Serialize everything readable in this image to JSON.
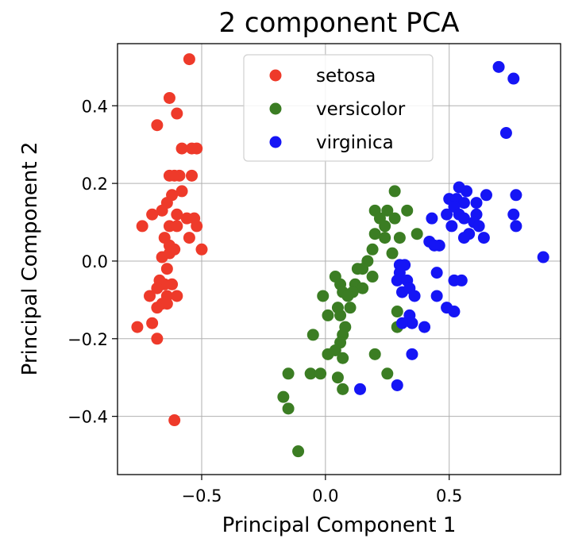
{
  "chart_data": {
    "type": "scatter",
    "title": "2 component PCA",
    "xlabel": "Principal Component 1",
    "ylabel": "Principal Component 2",
    "xlim": [
      -0.84,
      0.95
    ],
    "ylim": [
      -0.55,
      0.56
    ],
    "xticks": [
      -0.5,
      0.0,
      0.5
    ],
    "xtick_labels": [
      "−0.5",
      "0.0",
      "0.5"
    ],
    "yticks": [
      -0.4,
      -0.2,
      0.0,
      0.2,
      0.4
    ],
    "ytick_labels": [
      "−0.4",
      "−0.2",
      "0.0",
      "0.2",
      "0.4"
    ],
    "grid": true,
    "legend_position": "top-center",
    "series": [
      {
        "name": "setosa",
        "color": "#ee3a2a",
        "points": [
          [
            -0.55,
            0.52
          ],
          [
            -0.63,
            0.42
          ],
          [
            -0.6,
            0.38
          ],
          [
            -0.68,
            0.35
          ],
          [
            -0.58,
            0.29
          ],
          [
            -0.52,
            0.29
          ],
          [
            -0.54,
            0.29
          ],
          [
            -0.63,
            0.22
          ],
          [
            -0.61,
            0.22
          ],
          [
            -0.59,
            0.22
          ],
          [
            -0.54,
            0.22
          ],
          [
            -0.58,
            0.18
          ],
          [
            -0.62,
            0.17
          ],
          [
            -0.64,
            0.15
          ],
          [
            -0.66,
            0.13
          ],
          [
            -0.7,
            0.12
          ],
          [
            -0.6,
            0.12
          ],
          [
            -0.56,
            0.11
          ],
          [
            -0.53,
            0.11
          ],
          [
            -0.74,
            0.09
          ],
          [
            -0.63,
            0.09
          ],
          [
            -0.6,
            0.09
          ],
          [
            -0.52,
            0.09
          ],
          [
            -0.55,
            0.06
          ],
          [
            -0.65,
            0.06
          ],
          [
            -0.63,
            0.04
          ],
          [
            -0.61,
            0.03
          ],
          [
            -0.5,
            0.03
          ],
          [
            -0.66,
            0.01
          ],
          [
            -0.63,
            0.02
          ],
          [
            -0.64,
            -0.02
          ],
          [
            -0.67,
            -0.05
          ],
          [
            -0.65,
            -0.06
          ],
          [
            -0.62,
            -0.06
          ],
          [
            -0.68,
            -0.07
          ],
          [
            -0.64,
            -0.09
          ],
          [
            -0.71,
            -0.09
          ],
          [
            -0.6,
            -0.09
          ],
          [
            -0.66,
            -0.11
          ],
          [
            -0.64,
            -0.11
          ],
          [
            -0.68,
            -0.12
          ],
          [
            -0.76,
            -0.17
          ],
          [
            -0.7,
            -0.16
          ],
          [
            -0.68,
            -0.2
          ],
          [
            -0.61,
            -0.41
          ]
        ]
      },
      {
        "name": "versicolor",
        "color": "#3b7d23",
        "points": [
          [
            0.28,
            0.18
          ],
          [
            0.25,
            0.13
          ],
          [
            0.2,
            0.13
          ],
          [
            0.33,
            0.13
          ],
          [
            0.22,
            0.11
          ],
          [
            0.28,
            0.11
          ],
          [
            0.24,
            0.09
          ],
          [
            0.2,
            0.07
          ],
          [
            0.24,
            0.06
          ],
          [
            0.3,
            0.06
          ],
          [
            0.37,
            0.07
          ],
          [
            0.19,
            0.03
          ],
          [
            0.27,
            0.02
          ],
          [
            0.17,
            0.0
          ],
          [
            0.15,
            -0.02
          ],
          [
            0.13,
            -0.02
          ],
          [
            0.19,
            -0.04
          ],
          [
            0.04,
            -0.04
          ],
          [
            0.06,
            -0.06
          ],
          [
            0.12,
            -0.06
          ],
          [
            0.15,
            -0.07
          ],
          [
            0.11,
            -0.08
          ],
          [
            0.07,
            -0.08
          ],
          [
            0.09,
            -0.09
          ],
          [
            -0.01,
            -0.09
          ],
          [
            0.05,
            -0.12
          ],
          [
            0.1,
            -0.12
          ],
          [
            0.01,
            -0.14
          ],
          [
            0.06,
            -0.14
          ],
          [
            0.29,
            -0.13
          ],
          [
            0.29,
            -0.17
          ],
          [
            0.08,
            -0.17
          ],
          [
            0.07,
            -0.19
          ],
          [
            -0.05,
            -0.19
          ],
          [
            0.06,
            -0.21
          ],
          [
            0.04,
            -0.23
          ],
          [
            0.01,
            -0.24
          ],
          [
            0.2,
            -0.24
          ],
          [
            0.07,
            -0.25
          ],
          [
            0.25,
            -0.29
          ],
          [
            -0.15,
            -0.29
          ],
          [
            -0.06,
            -0.29
          ],
          [
            -0.02,
            -0.29
          ],
          [
            0.05,
            -0.3
          ],
          [
            0.07,
            -0.33
          ],
          [
            -0.17,
            -0.35
          ],
          [
            -0.15,
            -0.38
          ],
          [
            -0.11,
            -0.49
          ]
        ]
      },
      {
        "name": "virginica",
        "color": "#1515f5",
        "points": [
          [
            0.7,
            0.5
          ],
          [
            0.76,
            0.47
          ],
          [
            0.73,
            0.33
          ],
          [
            0.77,
            0.17
          ],
          [
            0.54,
            0.19
          ],
          [
            0.57,
            0.18
          ],
          [
            0.5,
            0.16
          ],
          [
            0.53,
            0.16
          ],
          [
            0.61,
            0.15
          ],
          [
            0.65,
            0.17
          ],
          [
            0.56,
            0.15
          ],
          [
            0.52,
            0.14
          ],
          [
            0.49,
            0.12
          ],
          [
            0.54,
            0.12
          ],
          [
            0.61,
            0.12
          ],
          [
            0.76,
            0.12
          ],
          [
            0.43,
            0.11
          ],
          [
            0.56,
            0.11
          ],
          [
            0.6,
            0.1
          ],
          [
            0.62,
            0.09
          ],
          [
            0.51,
            0.09
          ],
          [
            0.58,
            0.07
          ],
          [
            0.56,
            0.06
          ],
          [
            0.64,
            0.06
          ],
          [
            0.77,
            0.09
          ],
          [
            0.42,
            0.05
          ],
          [
            0.46,
            0.04
          ],
          [
            0.44,
            0.04
          ],
          [
            0.88,
            0.01
          ],
          [
            0.3,
            -0.01
          ],
          [
            0.32,
            -0.01
          ],
          [
            0.3,
            -0.03
          ],
          [
            0.45,
            -0.03
          ],
          [
            0.29,
            -0.05
          ],
          [
            0.33,
            -0.05
          ],
          [
            0.52,
            -0.05
          ],
          [
            0.55,
            -0.05
          ],
          [
            0.31,
            -0.08
          ],
          [
            0.34,
            -0.07
          ],
          [
            0.36,
            -0.09
          ],
          [
            0.45,
            -0.09
          ],
          [
            0.49,
            -0.12
          ],
          [
            0.52,
            -0.13
          ],
          [
            0.34,
            -0.14
          ],
          [
            0.35,
            -0.16
          ],
          [
            0.31,
            -0.16
          ],
          [
            0.4,
            -0.17
          ],
          [
            0.35,
            -0.24
          ],
          [
            0.14,
            -0.33
          ],
          [
            0.29,
            -0.32
          ]
        ]
      }
    ]
  }
}
